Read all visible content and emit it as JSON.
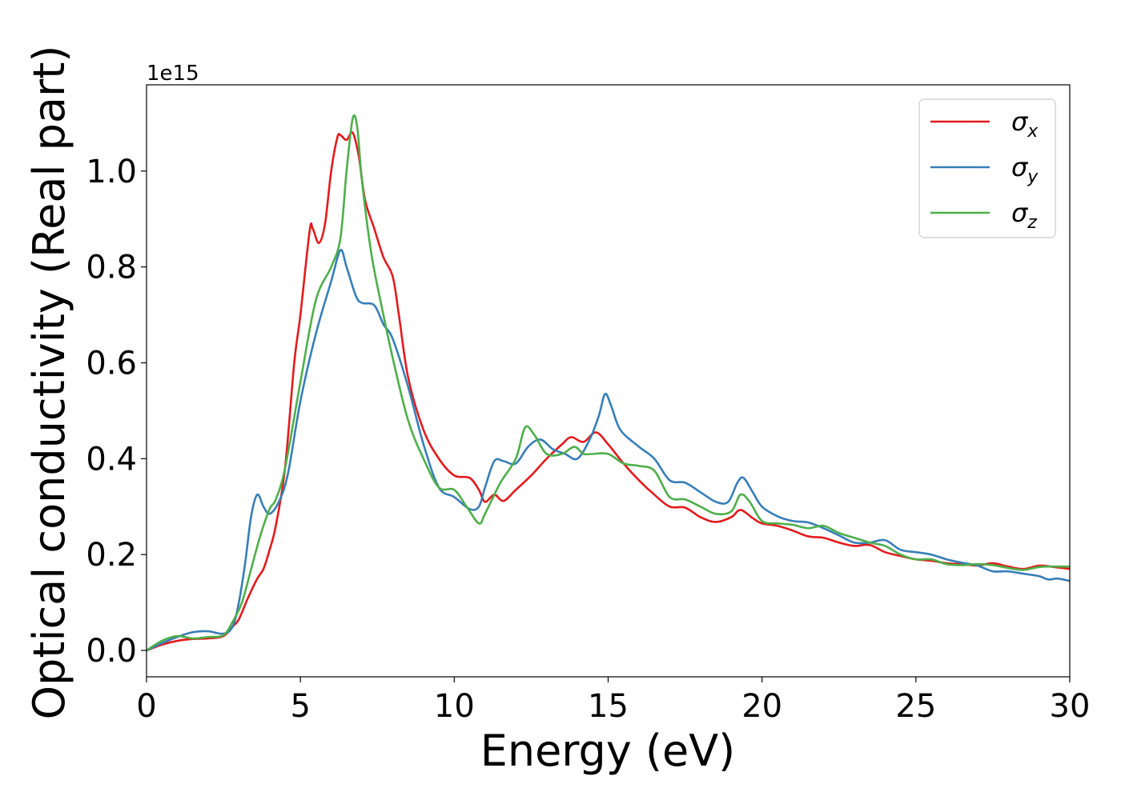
{
  "chart_data": {
    "type": "line",
    "title": "",
    "xlabel": "Energy (eV)",
    "ylabel": "Optical conductivity (Real part)",
    "y_offset_label": "1e15",
    "xlim": [
      0,
      30
    ],
    "ylim": [
      -0.055,
      1.18
    ],
    "x_ticks": [
      0,
      5,
      10,
      15,
      20,
      25,
      30
    ],
    "x_tick_labels": [
      "0",
      "5",
      "10",
      "15",
      "20",
      "25",
      "30"
    ],
    "y_ticks": [
      0.0,
      0.2,
      0.4,
      0.6,
      0.8,
      1.0
    ],
    "y_tick_labels": [
      "0.0",
      "0.2",
      "0.4",
      "0.6",
      "0.8",
      "1.0"
    ],
    "grid": false,
    "legend_position": "top-right",
    "series": [
      {
        "name": "σx",
        "symbol": "σ",
        "subscript": "x",
        "color": "#e41a1c",
        "points": [
          [
            0,
            0
          ],
          [
            0.5,
            0.012
          ],
          [
            1,
            0.02
          ],
          [
            1.5,
            0.024
          ],
          [
            2,
            0.025
          ],
          [
            2.5,
            0.03
          ],
          [
            2.8,
            0.05
          ],
          [
            3,
            0.065
          ],
          [
            3.3,
            0.11
          ],
          [
            3.6,
            0.15
          ],
          [
            3.8,
            0.17
          ],
          [
            4,
            0.21
          ],
          [
            4.2,
            0.26
          ],
          [
            4.5,
            0.38
          ],
          [
            4.8,
            0.6
          ],
          [
            5,
            0.7
          ],
          [
            5.3,
            0.875
          ],
          [
            5.4,
            0.88
          ],
          [
            5.6,
            0.85
          ],
          [
            5.8,
            0.89
          ],
          [
            6,
            1.0
          ],
          [
            6.2,
            1.07
          ],
          [
            6.3,
            1.075
          ],
          [
            6.5,
            1.065
          ],
          [
            6.7,
            1.08
          ],
          [
            6.9,
            1.03
          ],
          [
            7.1,
            0.94
          ],
          [
            7.4,
            0.88
          ],
          [
            7.7,
            0.82
          ],
          [
            8,
            0.78
          ],
          [
            8.2,
            0.7
          ],
          [
            8.5,
            0.57
          ],
          [
            9,
            0.46
          ],
          [
            9.5,
            0.4
          ],
          [
            10,
            0.365
          ],
          [
            10.5,
            0.36
          ],
          [
            10.8,
            0.335
          ],
          [
            11,
            0.31
          ],
          [
            11.3,
            0.325
          ],
          [
            11.6,
            0.312
          ],
          [
            12,
            0.335
          ],
          [
            12.5,
            0.365
          ],
          [
            13,
            0.4
          ],
          [
            13.5,
            0.43
          ],
          [
            13.8,
            0.445
          ],
          [
            14.2,
            0.435
          ],
          [
            14.6,
            0.455
          ],
          [
            15,
            0.43
          ],
          [
            15.5,
            0.39
          ],
          [
            16,
            0.355
          ],
          [
            16.5,
            0.325
          ],
          [
            17,
            0.3
          ],
          [
            17.5,
            0.298
          ],
          [
            18,
            0.278
          ],
          [
            18.5,
            0.268
          ],
          [
            19,
            0.278
          ],
          [
            19.3,
            0.293
          ],
          [
            19.7,
            0.276
          ],
          [
            20,
            0.265
          ],
          [
            20.5,
            0.26
          ],
          [
            21,
            0.25
          ],
          [
            21.5,
            0.238
          ],
          [
            22,
            0.235
          ],
          [
            22.5,
            0.225
          ],
          [
            23,
            0.218
          ],
          [
            23.5,
            0.22
          ],
          [
            24,
            0.205
          ],
          [
            24.5,
            0.197
          ],
          [
            25,
            0.19
          ],
          [
            25.5,
            0.187
          ],
          [
            26,
            0.182
          ],
          [
            26.5,
            0.18
          ],
          [
            27,
            0.177
          ],
          [
            27.5,
            0.182
          ],
          [
            28,
            0.175
          ],
          [
            28.5,
            0.17
          ],
          [
            29,
            0.177
          ],
          [
            29.5,
            0.174
          ],
          [
            30,
            0.17
          ]
        ]
      },
      {
        "name": "σy",
        "symbol": "σ",
        "subscript": "y",
        "color": "#377eb8",
        "points": [
          [
            0,
            0
          ],
          [
            0.5,
            0.015
          ],
          [
            1,
            0.028
          ],
          [
            1.5,
            0.038
          ],
          [
            2,
            0.04
          ],
          [
            2.5,
            0.035
          ],
          [
            2.8,
            0.05
          ],
          [
            3,
            0.1
          ],
          [
            3.2,
            0.18
          ],
          [
            3.4,
            0.28
          ],
          [
            3.6,
            0.325
          ],
          [
            3.8,
            0.3
          ],
          [
            4,
            0.285
          ],
          [
            4.3,
            0.31
          ],
          [
            4.6,
            0.37
          ],
          [
            5,
            0.52
          ],
          [
            5.5,
            0.66
          ],
          [
            6,
            0.77
          ],
          [
            6.3,
            0.835
          ],
          [
            6.5,
            0.8
          ],
          [
            6.8,
            0.74
          ],
          [
            7,
            0.725
          ],
          [
            7.4,
            0.72
          ],
          [
            7.7,
            0.68
          ],
          [
            8,
            0.65
          ],
          [
            8.5,
            0.55
          ],
          [
            9,
            0.43
          ],
          [
            9.5,
            0.34
          ],
          [
            10,
            0.32
          ],
          [
            10.5,
            0.295
          ],
          [
            10.8,
            0.3
          ],
          [
            11,
            0.34
          ],
          [
            11.3,
            0.395
          ],
          [
            11.6,
            0.395
          ],
          [
            12,
            0.39
          ],
          [
            12.4,
            0.425
          ],
          [
            12.8,
            0.44
          ],
          [
            13.2,
            0.42
          ],
          [
            13.6,
            0.41
          ],
          [
            14,
            0.4
          ],
          [
            14.4,
            0.44
          ],
          [
            14.7,
            0.49
          ],
          [
            14.9,
            0.535
          ],
          [
            15.1,
            0.51
          ],
          [
            15.4,
            0.46
          ],
          [
            16,
            0.425
          ],
          [
            16.5,
            0.4
          ],
          [
            17,
            0.355
          ],
          [
            17.5,
            0.35
          ],
          [
            18,
            0.33
          ],
          [
            18.5,
            0.31
          ],
          [
            18.9,
            0.31
          ],
          [
            19.2,
            0.35
          ],
          [
            19.4,
            0.36
          ],
          [
            19.7,
            0.33
          ],
          [
            20,
            0.3
          ],
          [
            20.5,
            0.28
          ],
          [
            21,
            0.27
          ],
          [
            21.5,
            0.267
          ],
          [
            22,
            0.255
          ],
          [
            22.5,
            0.24
          ],
          [
            23,
            0.225
          ],
          [
            23.5,
            0.225
          ],
          [
            24,
            0.23
          ],
          [
            24.5,
            0.21
          ],
          [
            25,
            0.205
          ],
          [
            25.5,
            0.2
          ],
          [
            26,
            0.19
          ],
          [
            26.5,
            0.183
          ],
          [
            27,
            0.177
          ],
          [
            27.5,
            0.165
          ],
          [
            28,
            0.165
          ],
          [
            28.5,
            0.16
          ],
          [
            29,
            0.155
          ],
          [
            29.3,
            0.148
          ],
          [
            29.6,
            0.15
          ],
          [
            30,
            0.145
          ]
        ]
      },
      {
        "name": "σz",
        "symbol": "σ",
        "subscript": "z",
        "color": "#4daf4a",
        "points": [
          [
            0,
            0
          ],
          [
            0.5,
            0.02
          ],
          [
            1,
            0.03
          ],
          [
            1.5,
            0.025
          ],
          [
            2,
            0.028
          ],
          [
            2.5,
            0.032
          ],
          [
            2.8,
            0.06
          ],
          [
            3.1,
            0.1
          ],
          [
            3.4,
            0.17
          ],
          [
            3.7,
            0.24
          ],
          [
            4,
            0.295
          ],
          [
            4.2,
            0.315
          ],
          [
            4.5,
            0.38
          ],
          [
            5,
            0.56
          ],
          [
            5.5,
            0.73
          ],
          [
            6,
            0.8
          ],
          [
            6.3,
            0.86
          ],
          [
            6.5,
            1.0
          ],
          [
            6.7,
            1.11
          ],
          [
            6.85,
            1.09
          ],
          [
            7,
            0.98
          ],
          [
            7.3,
            0.83
          ],
          [
            7.6,
            0.73
          ],
          [
            8,
            0.61
          ],
          [
            8.5,
            0.48
          ],
          [
            9,
            0.4
          ],
          [
            9.5,
            0.34
          ],
          [
            10,
            0.335
          ],
          [
            10.4,
            0.3
          ],
          [
            10.8,
            0.265
          ],
          [
            11,
            0.285
          ],
          [
            11.5,
            0.35
          ],
          [
            12,
            0.4
          ],
          [
            12.3,
            0.465
          ],
          [
            12.6,
            0.45
          ],
          [
            13,
            0.41
          ],
          [
            13.5,
            0.41
          ],
          [
            13.9,
            0.425
          ],
          [
            14.2,
            0.41
          ],
          [
            14.5,
            0.41
          ],
          [
            15,
            0.41
          ],
          [
            15.5,
            0.39
          ],
          [
            16,
            0.385
          ],
          [
            16.5,
            0.375
          ],
          [
            17,
            0.32
          ],
          [
            17.5,
            0.315
          ],
          [
            18,
            0.3
          ],
          [
            18.5,
            0.285
          ],
          [
            19,
            0.29
          ],
          [
            19.3,
            0.325
          ],
          [
            19.6,
            0.31
          ],
          [
            20,
            0.27
          ],
          [
            20.5,
            0.265
          ],
          [
            21,
            0.262
          ],
          [
            21.5,
            0.255
          ],
          [
            22,
            0.26
          ],
          [
            22.5,
            0.245
          ],
          [
            23,
            0.235
          ],
          [
            23.5,
            0.225
          ],
          [
            24,
            0.218
          ],
          [
            24.5,
            0.2
          ],
          [
            25,
            0.19
          ],
          [
            25.5,
            0.19
          ],
          [
            26,
            0.18
          ],
          [
            26.5,
            0.178
          ],
          [
            27,
            0.18
          ],
          [
            27.5,
            0.178
          ],
          [
            28,
            0.172
          ],
          [
            28.5,
            0.168
          ],
          [
            29,
            0.174
          ],
          [
            29.5,
            0.175
          ],
          [
            30,
            0.175
          ]
        ]
      }
    ]
  }
}
